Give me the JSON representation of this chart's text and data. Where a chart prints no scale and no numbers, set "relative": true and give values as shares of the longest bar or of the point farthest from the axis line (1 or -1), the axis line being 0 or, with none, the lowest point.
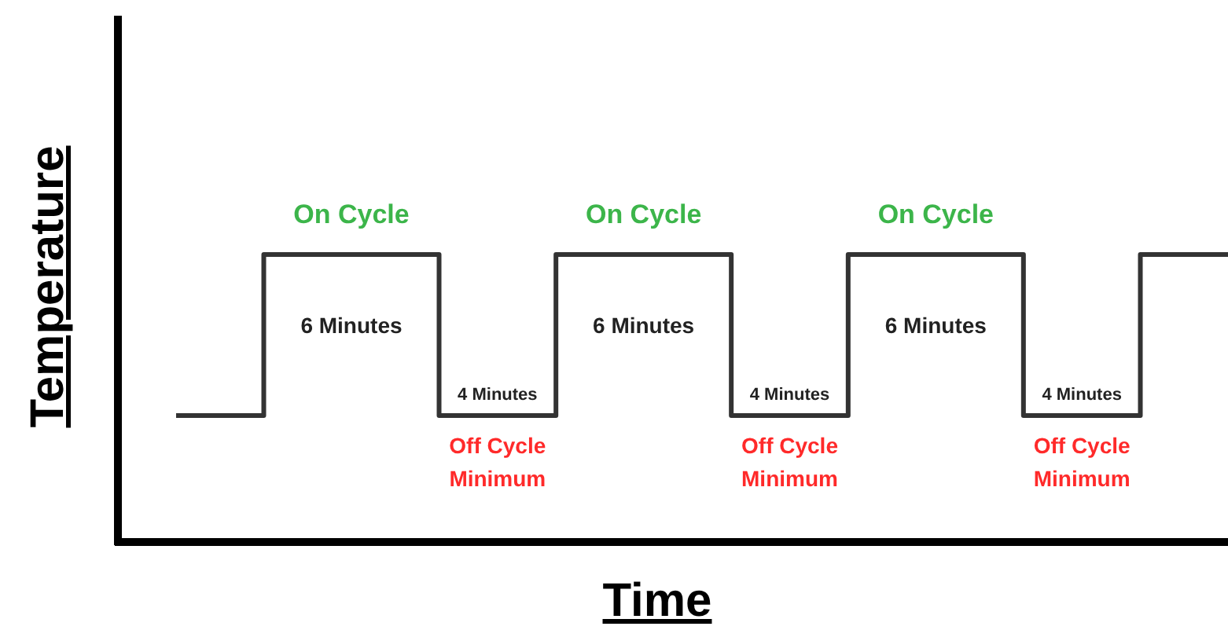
{
  "chart_data": {
    "type": "step",
    "relative": true,
    "xlabel": "Time",
    "ylabel": "Temperature",
    "categories": [
      null,
      null,
      null,
      null,
      null,
      null,
      null,
      null,
      null,
      null,
      null,
      null,
      null,
      null,
      null,
      null,
      null,
      null,
      null,
      null,
      null,
      null,
      null,
      null,
      null,
      null,
      null,
      null,
      null,
      null,
      null,
      null,
      null,
      null,
      null,
      null,
      null
    ],
    "series": [
      {
        "color": "#333333",
        "values": [
          0.44,
          0.44,
          0.44,
          1,
          1,
          1,
          1,
          1,
          1,
          0.44,
          0.44,
          0.44,
          0.44,
          1,
          1,
          1,
          1,
          1,
          1,
          0.44,
          0.44,
          0.44,
          0.44,
          1,
          1,
          1,
          1,
          1,
          1,
          0.44,
          0.44,
          0.44,
          0.44,
          1,
          1,
          1,
          1
        ]
      }
    ],
    "annotations": [
      "On Cycle",
      "6 Minutes",
      "4 Minutes",
      "Off Cycle\nMinimum",
      "On Cycle",
      "6 Minutes",
      "4 Minutes",
      "Off Cycle\nMinimum",
      "On Cycle",
      "6 Minutes",
      "4 Minutes",
      "Off Cycle\nMinimum"
    ]
  }
}
